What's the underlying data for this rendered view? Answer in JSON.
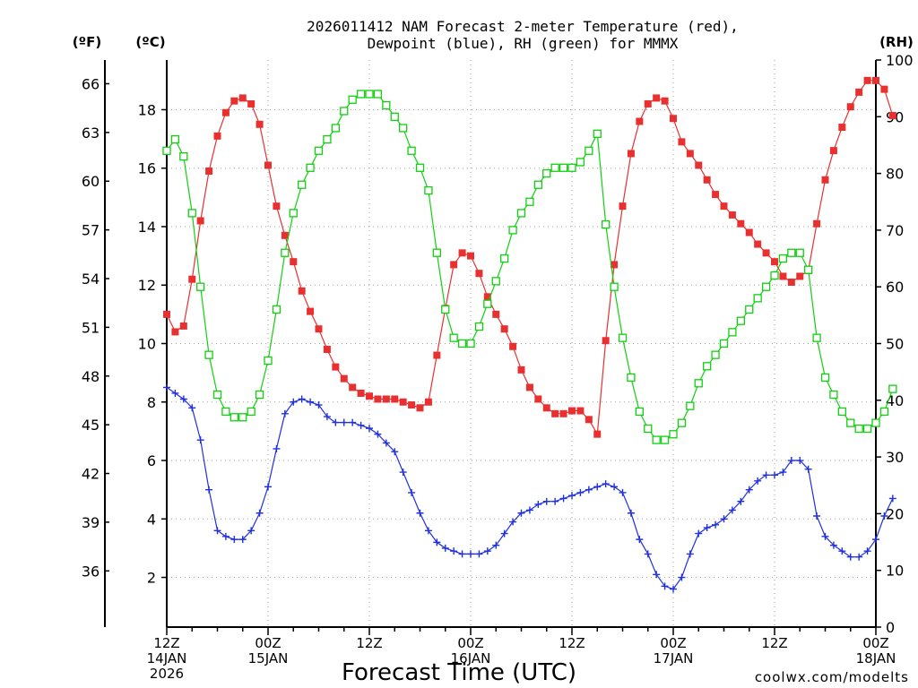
{
  "chart_data": {
    "type": "line",
    "title_line1": "2026011412 NAM Forecast 2-meter Temperature (red),",
    "title_line2": "Dewpoint (blue), RH (green) for MMMX",
    "xlabel": "Forecast Time (UTC)",
    "watermark": "coolwx.com/modelts",
    "left_f_label": "(ºF)",
    "left_c_label": "(ºC)",
    "right_label": "(RH)",
    "x_hours_range": [
      0,
      84
    ],
    "c_range": [
      0.3,
      19.7
    ],
    "rh_range": [
      0,
      100
    ],
    "x_ticks": [
      {
        "hour": 0,
        "l1": "12Z",
        "l2": "14JAN",
        "l3": "2026"
      },
      {
        "hour": 12,
        "l1": "00Z",
        "l2": "15JAN",
        "l3": ""
      },
      {
        "hour": 24,
        "l1": "12Z",
        "l2": "",
        "l3": ""
      },
      {
        "hour": 36,
        "l1": "00Z",
        "l2": "16JAN",
        "l3": ""
      },
      {
        "hour": 48,
        "l1": "12Z",
        "l2": "",
        "l3": ""
      },
      {
        "hour": 60,
        "l1": "00Z",
        "l2": "17JAN",
        "l3": ""
      },
      {
        "hour": 72,
        "l1": "12Z",
        "l2": "",
        "l3": ""
      },
      {
        "hour": 84,
        "l1": "00Z",
        "l2": "18JAN",
        "l3": ""
      }
    ],
    "c_ticks": [
      2,
      4,
      6,
      8,
      10,
      12,
      14,
      16,
      18
    ],
    "f_ticks": [
      36,
      39,
      42,
      45,
      48,
      51,
      54,
      57,
      60,
      63,
      66
    ],
    "rh_ticks": [
      0,
      10,
      20,
      30,
      40,
      50,
      60,
      70,
      80,
      90,
      100
    ],
    "colors": {
      "temperature": "#e83030",
      "dewpoint": "#2030e0",
      "rh": "#10d010",
      "grid": "#a0a0a0",
      "watermark": "#e83030"
    },
    "series": [
      {
        "name": "Temperature",
        "unit": "C",
        "marker": "filled-square",
        "values": [
          11.0,
          10.4,
          10.6,
          12.2,
          14.2,
          15.9,
          17.1,
          17.9,
          18.3,
          18.4,
          18.2,
          17.5,
          16.1,
          14.7,
          13.7,
          12.8,
          11.8,
          11.1,
          10.5,
          9.8,
          9.2,
          8.8,
          8.5,
          8.3,
          8.2,
          8.1,
          8.1,
          8.1,
          8.0,
          7.9,
          7.8,
          8.0,
          9.6,
          11.2,
          12.7,
          13.1,
          13.0,
          12.4,
          11.6,
          11.0,
          10.5,
          9.9,
          9.1,
          8.5,
          8.1,
          7.8,
          7.6,
          7.6,
          7.7,
          7.7,
          7.4,
          6.9,
          10.1,
          12.7,
          14.7,
          16.5,
          17.6,
          18.2,
          18.4,
          18.3,
          17.7,
          16.9,
          16.5,
          16.1,
          15.6,
          15.1,
          14.7,
          14.4,
          14.1,
          13.8,
          13.4,
          13.1,
          12.8,
          12.3,
          12.1,
          12.3,
          12.5,
          14.1,
          15.6,
          16.6,
          17.4,
          18.1,
          18.6,
          19.0,
          19.0,
          18.7,
          17.8
        ]
      },
      {
        "name": "Dewpoint",
        "unit": "C",
        "marker": "plus",
        "values": [
          8.5,
          8.3,
          8.1,
          7.8,
          6.7,
          5.0,
          3.6,
          3.4,
          3.3,
          3.3,
          3.6,
          4.2,
          5.1,
          6.4,
          7.6,
          8.0,
          8.1,
          8.0,
          7.9,
          7.5,
          7.3,
          7.3,
          7.3,
          7.2,
          7.1,
          6.9,
          6.6,
          6.3,
          5.6,
          4.9,
          4.2,
          3.6,
          3.2,
          3.0,
          2.9,
          2.8,
          2.8,
          2.8,
          2.9,
          3.1,
          3.5,
          3.9,
          4.2,
          4.3,
          4.5,
          4.6,
          4.6,
          4.7,
          4.8,
          4.9,
          5.0,
          5.1,
          5.2,
          5.1,
          4.9,
          4.2,
          3.3,
          2.8,
          2.1,
          1.7,
          1.6,
          2.0,
          2.8,
          3.5,
          3.7,
          3.8,
          4.0,
          4.3,
          4.6,
          5.0,
          5.3,
          5.5,
          5.5,
          5.6,
          6.0,
          6.0,
          5.7,
          4.1,
          3.4,
          3.1,
          2.9,
          2.7,
          2.7,
          2.9,
          3.3,
          4.1,
          4.7
        ]
      },
      {
        "name": "RH",
        "unit": "%",
        "marker": "open-square",
        "values": [
          84,
          86,
          83,
          73,
          60,
          48,
          41,
          38,
          37,
          37,
          38,
          41,
          47,
          56,
          66,
          73,
          78,
          81,
          84,
          86,
          88,
          91,
          93,
          94,
          94,
          94,
          92,
          90,
          88,
          84,
          81,
          77,
          66,
          56,
          51,
          50,
          50,
          53,
          57,
          61,
          65,
          70,
          73,
          75,
          78,
          80,
          81,
          81,
          81,
          82,
          84,
          87,
          71,
          60,
          51,
          44,
          38,
          35,
          33,
          33,
          34,
          36,
          39,
          43,
          46,
          48,
          50,
          52,
          54,
          56,
          58,
          60,
          62,
          65,
          66,
          66,
          63,
          51,
          44,
          41,
          38,
          36,
          35,
          35,
          36,
          38,
          42
        ]
      }
    ]
  }
}
